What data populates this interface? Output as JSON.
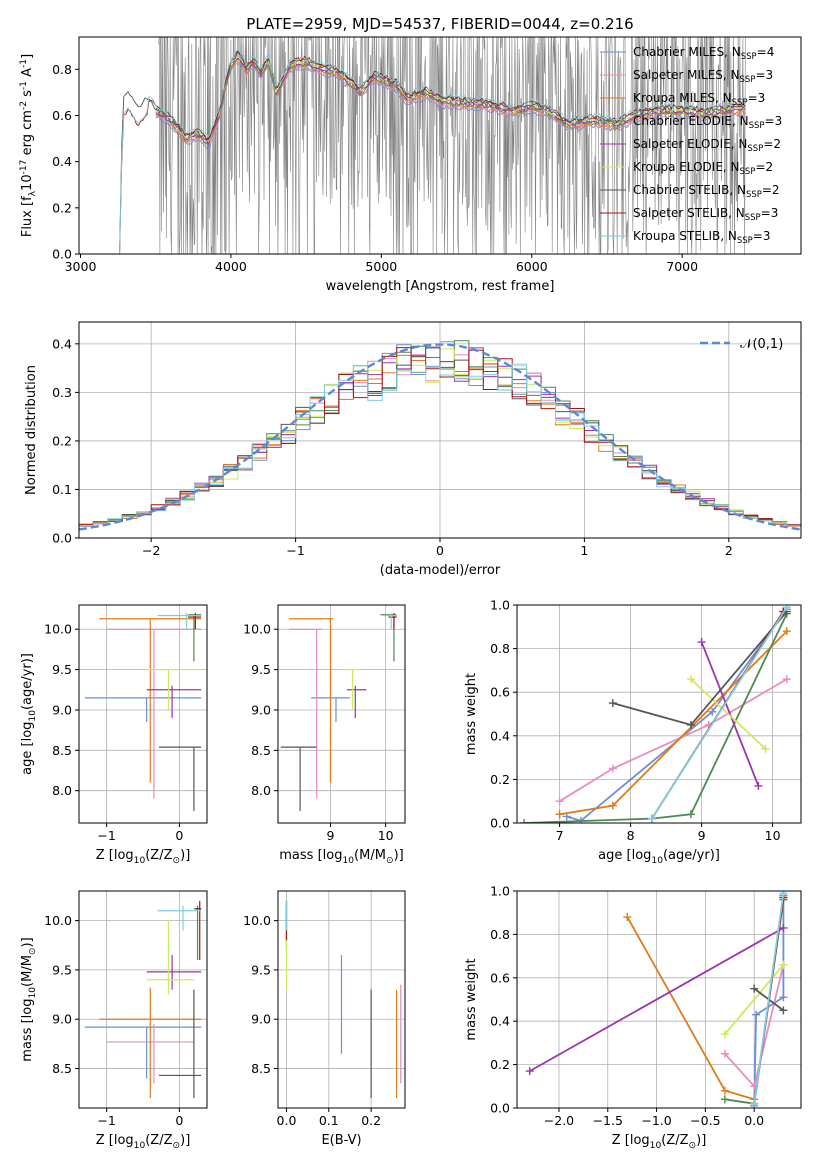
{
  "figure_title": "PLATE=2959, MJD=54537, FIBERID=0044, z=0.216",
  "colors": {
    "s0": "#6b8fd6",
    "s1": "#e68cc0",
    "s2": "#e07b1c",
    "s3": "#4f8a55",
    "s4": "#9b34b0",
    "s5": "#c9ec5a",
    "s6": "#555555",
    "s7": "#a01818",
    "s8": "#7fcfe0",
    "data": "#808080",
    "gaussian": "#5a8ad6",
    "grid": "#b0b0b0"
  },
  "series_names": [
    "Chabrier MILES, N$_{SSP}$=4",
    "Salpeter MILES, N$_{SSP}$=3",
    "Kroupa MILES, N$_{SSP}$=3",
    "Chabrier ELODIE, N$_{SSP}$=3",
    "Salpeter ELODIE, N$_{SSP}$=2",
    "Kroupa ELODIE, N$_{SSP}$=2",
    "Chabrier STELIB, N$_{SSP}$=2",
    "Salpeter STELIB, N$_{SSP}$=3",
    "Kroupa STELIB, N$_{SSP}$=3"
  ],
  "legend_display": [
    {
      "pre": "Chabrier MILES, N",
      "sub": "SSP",
      "post": "=4"
    },
    {
      "pre": "Salpeter MILES, N",
      "sub": "SSP",
      "post": "=3"
    },
    {
      "pre": "Kroupa MILES, N",
      "sub": "SSP",
      "post": "=3"
    },
    {
      "pre": "Chabrier ELODIE, N",
      "sub": "SSP",
      "post": "=3"
    },
    {
      "pre": "Salpeter ELODIE, N",
      "sub": "SSP",
      "post": "=2"
    },
    {
      "pre": "Kroupa ELODIE, N",
      "sub": "SSP",
      "post": "=2"
    },
    {
      "pre": "Chabrier STELIB, N",
      "sub": "SSP",
      "post": "=2"
    },
    {
      "pre": "Salpeter STELIB, N",
      "sub": "SSP",
      "post": "=3"
    },
    {
      "pre": "Kroupa STELIB, N",
      "sub": "SSP",
      "post": "=3"
    }
  ],
  "chart_data": [
    {
      "id": "spectrum",
      "type": "line",
      "title": "PLATE=2959, MJD=54537, FIBERID=0044, z=0.216",
      "xlabel": "wavelength [Angstrom, rest frame]",
      "ylabel": "Flux [f$_\\lambda$10$^{-17}$ erg cm$^{-2}$ s$^{-1}$ A$^{-1}$]",
      "xlim": [
        2990,
        7790
      ],
      "ylim": [
        0,
        0.94
      ],
      "xticks": [
        3000,
        4000,
        5000,
        6000,
        7000
      ],
      "yticks": [
        0.0,
        0.2,
        0.4,
        0.6,
        0.8
      ],
      "grid": false,
      "legend": "upper right",
      "data_range": [
        3520,
        7420
      ],
      "model_continuum": [
        [
          3260,
          0.0
        ],
        [
          3280,
          0.66
        ],
        [
          3320,
          0.69
        ],
        [
          3380,
          0.62
        ],
        [
          3440,
          0.67
        ],
        [
          3500,
          0.62
        ],
        [
          3600,
          0.58
        ],
        [
          3700,
          0.5
        ],
        [
          3780,
          0.52
        ],
        [
          3850,
          0.48
        ],
        [
          3920,
          0.6
        ],
        [
          3960,
          0.72
        ],
        [
          4000,
          0.82
        ],
        [
          4050,
          0.86
        ],
        [
          4100,
          0.8
        ],
        [
          4150,
          0.83
        ],
        [
          4200,
          0.78
        ],
        [
          4250,
          0.84
        ],
        [
          4300,
          0.7
        ],
        [
          4400,
          0.82
        ],
        [
          4500,
          0.83
        ],
        [
          4600,
          0.8
        ],
        [
          4700,
          0.79
        ],
        [
          4800,
          0.74
        ],
        [
          4861,
          0.7
        ],
        [
          4950,
          0.77
        ],
        [
          5100,
          0.73
        ],
        [
          5175,
          0.67
        ],
        [
          5300,
          0.7
        ],
        [
          5400,
          0.66
        ],
        [
          5500,
          0.66
        ],
        [
          5600,
          0.65
        ],
        [
          5700,
          0.65
        ],
        [
          5800,
          0.63
        ],
        [
          5890,
          0.62
        ],
        [
          6000,
          0.64
        ],
        [
          6100,
          0.62
        ],
        [
          6250,
          0.56
        ],
        [
          6400,
          0.58
        ],
        [
          6563,
          0.56
        ],
        [
          6700,
          0.6
        ],
        [
          6850,
          0.62
        ],
        [
          7000,
          0.62
        ],
        [
          7150,
          0.61
        ],
        [
          7300,
          0.62
        ],
        [
          7420,
          0.63
        ],
        [
          7421,
          0.0
        ]
      ]
    },
    {
      "id": "residual-histogram",
      "type": "histogram",
      "xlabel": "(data-model)/error",
      "ylabel": "Normed distribution",
      "xlim": [
        -2.5,
        2.5
      ],
      "ylim": [
        0,
        0.445
      ],
      "xticks": [
        -2,
        -1,
        0,
        1,
        2
      ],
      "yticks": [
        0.0,
        0.1,
        0.2,
        0.3,
        0.4
      ],
      "grid": true,
      "legend": "upper right",
      "reference_curve": {
        "name": "$\\mathcal{N}(0,1)$",
        "mean": 0,
        "sigma": 1
      },
      "bin_width": 0.1
    },
    {
      "id": "age-vs-metallicity",
      "type": "errorbar",
      "xlabel": "Z [log$_{10}$(Z/Z$_\\odot$)]",
      "ylabel": "age  [log$_{10}$(age/yr)]",
      "xlim": [
        -1.38,
        0.38
      ],
      "ylim": [
        7.6,
        10.3
      ],
      "xticks": [
        -1,
        0
      ],
      "yticks": [
        8.0,
        8.5,
        9.0,
        9.5,
        10.0
      ],
      "grid": true,
      "points": [
        {
          "series": 0,
          "x": -0.45,
          "xlo": -1.3,
          "xhi": 0.3,
          "y": 9.15,
          "ylo": 8.85,
          "yhi": 9.15
        },
        {
          "series": 1,
          "x": -0.35,
          "xlo": -1.0,
          "xhi": 0.3,
          "y": 10.0,
          "ylo": 7.9,
          "yhi": 10.0
        },
        {
          "series": 2,
          "x": -0.4,
          "xlo": -1.1,
          "xhi": 0.3,
          "y": 10.13,
          "ylo": 8.1,
          "yhi": 10.13
        },
        {
          "series": 3,
          "x": 0.2,
          "xlo": 0.12,
          "xhi": 0.3,
          "y": 10.18,
          "ylo": 9.6,
          "yhi": 10.18
        },
        {
          "series": 4,
          "x": -0.1,
          "xlo": -0.45,
          "xhi": 0.3,
          "y": 9.25,
          "ylo": 8.9,
          "yhi": 9.3
        },
        {
          "series": 5,
          "x": -0.15,
          "xlo": -0.45,
          "xhi": 0.3,
          "y": 9.5,
          "ylo": 9.0,
          "yhi": 9.5
        },
        {
          "series": 6,
          "x": 0.2,
          "xlo": -0.28,
          "xhi": 0.3,
          "y": 8.54,
          "ylo": 7.75,
          "yhi": 8.54
        },
        {
          "series": 7,
          "x": 0.22,
          "xlo": 0.12,
          "xhi": 0.3,
          "y": 10.15,
          "ylo": 10.0,
          "yhi": 10.2
        },
        {
          "series": 8,
          "x": 0.1,
          "xlo": -0.3,
          "xhi": 0.3,
          "y": 10.17,
          "ylo": 10.0,
          "yhi": 10.2
        }
      ]
    },
    {
      "id": "age-vs-mass",
      "type": "errorbar",
      "xlabel": "mass [log$_{10}$(M/M$_\\odot$)]",
      "ylabel": "",
      "xlim": [
        8.05,
        10.35
      ],
      "ylim": [
        7.6,
        10.3
      ],
      "xticks": [
        9,
        10
      ],
      "yticks": [
        8.0,
        8.5,
        9.0,
        9.5,
        10.0
      ],
      "grid": true,
      "points": [
        {
          "series": 0,
          "x": 9.1,
          "xlo": 8.65,
          "xhi": 9.35,
          "y": 9.15,
          "ylo": 8.85,
          "yhi": 9.15
        },
        {
          "series": 1,
          "x": 8.75,
          "xlo": 8.25,
          "xhi": 8.85,
          "y": 10.0,
          "ylo": 7.9,
          "yhi": 10.0
        },
        {
          "series": 2,
          "x": 9.0,
          "xlo": 8.25,
          "xhi": 9.05,
          "y": 10.13,
          "ylo": 8.1,
          "yhi": 10.13
        },
        {
          "series": 3,
          "x": 10.15,
          "xlo": 9.9,
          "xhi": 10.2,
          "y": 10.18,
          "ylo": 9.6,
          "yhi": 10.18
        },
        {
          "series": 4,
          "x": 9.45,
          "xlo": 9.3,
          "xhi": 9.65,
          "y": 9.25,
          "ylo": 8.9,
          "yhi": 9.3
        },
        {
          "series": 5,
          "x": 9.4,
          "xlo": 9.2,
          "xhi": 9.55,
          "y": 9.5,
          "ylo": 9.0,
          "yhi": 9.5
        },
        {
          "series": 6,
          "x": 8.45,
          "xlo": 8.1,
          "xhi": 8.75,
          "y": 8.54,
          "ylo": 7.75,
          "yhi": 8.54
        },
        {
          "series": 7,
          "x": 10.15,
          "xlo": 10.05,
          "xhi": 10.2,
          "y": 10.15,
          "ylo": 10.0,
          "yhi": 10.2
        },
        {
          "series": 8,
          "x": 10.1,
          "xlo": 9.95,
          "xhi": 10.2,
          "y": 10.17,
          "ylo": 10.0,
          "yhi": 10.2
        }
      ]
    },
    {
      "id": "mass-weight-vs-age",
      "type": "line",
      "xlabel": "age  [log$_{10}$(age/yr)]",
      "ylabel": "mass weight",
      "xlim": [
        6.4,
        10.4
      ],
      "ylim": [
        0,
        1
      ],
      "xticks": [
        7,
        8,
        9,
        10
      ],
      "yticks": [
        0.0,
        0.2,
        0.4,
        0.6,
        0.8,
        1.0
      ],
      "grid": true,
      "series": [
        {
          "series": 0,
          "x": [
            7.1,
            7.3,
            9.15,
            10.2
          ],
          "y": [
            0.03,
            0.01,
            0.51,
            0.98
          ]
        },
        {
          "series": 1,
          "x": [
            7.0,
            7.75,
            9.1,
            10.2
          ],
          "y": [
            0.1,
            0.25,
            0.45,
            0.66
          ]
        },
        {
          "series": 2,
          "x": [
            7.0,
            7.75,
            10.2
          ],
          "y": [
            0.04,
            0.08,
            0.88
          ]
        },
        {
          "series": 3,
          "x": [
            6.5,
            8.3,
            8.85,
            10.2
          ],
          "y": [
            0.0,
            0.02,
            0.04,
            0.96
          ]
        },
        {
          "series": 4,
          "x": [
            9.0,
            9.8
          ],
          "y": [
            0.83,
            0.17
          ]
        },
        {
          "series": 5,
          "x": [
            8.85,
            9.9
          ],
          "y": [
            0.66,
            0.34
          ]
        },
        {
          "series": 6,
          "x": [
            7.75,
            8.85,
            10.2
          ],
          "y": [
            0.55,
            0.45,
            0.97
          ]
        },
        {
          "series": 7,
          "x": [
            8.3,
            10.15
          ],
          "y": [
            0.02,
            0.97
          ]
        },
        {
          "series": 8,
          "x": [
            8.3,
            10.2
          ],
          "y": [
            0.02,
            0.99
          ]
        }
      ]
    },
    {
      "id": "mass-vs-metallicity",
      "type": "errorbar",
      "xlabel": "Z [log$_{10}$(Z/Z$_\\odot$)]",
      "ylabel": "mass [log$_{10}$(M/M$_\\odot$)]",
      "xlim": [
        -1.38,
        0.38
      ],
      "ylim": [
        8.1,
        10.3
      ],
      "xticks": [
        -1,
        0
      ],
      "yticks": [
        8.5,
        9.0,
        9.5,
        10.0
      ],
      "grid": true,
      "points": [
        {
          "series": 0,
          "x": -0.45,
          "xlo": -1.3,
          "xhi": 0.3,
          "y": 8.92,
          "ylo": 8.4,
          "yhi": 8.92
        },
        {
          "series": 1,
          "x": -0.35,
          "xlo": -1.0,
          "xhi": 0.2,
          "y": 8.77,
          "ylo": 8.35,
          "yhi": 8.95
        },
        {
          "series": 2,
          "x": -0.4,
          "xlo": -1.1,
          "xhi": 0.3,
          "y": 9.0,
          "ylo": 8.2,
          "yhi": 9.32
        },
        {
          "series": 3,
          "x": 0.25,
          "xlo": 0.2,
          "xhi": 0.3,
          "y": 10.12,
          "ylo": 9.6,
          "yhi": 10.15
        },
        {
          "series": 4,
          "x": -0.1,
          "xlo": -0.45,
          "xhi": 0.3,
          "y": 9.48,
          "ylo": 9.3,
          "yhi": 9.65
        },
        {
          "series": 5,
          "x": -0.15,
          "xlo": -0.45,
          "xhi": 0.2,
          "y": 9.4,
          "ylo": 9.25,
          "yhi": 10.0
        },
        {
          "series": 6,
          "x": 0.2,
          "xlo": -0.28,
          "xhi": 0.3,
          "y": 8.43,
          "ylo": 8.2,
          "yhi": 9.3
        },
        {
          "series": 7,
          "x": 0.28,
          "xlo": 0.22,
          "xhi": 0.3,
          "y": 10.12,
          "ylo": 9.6,
          "yhi": 10.2
        },
        {
          "series": 8,
          "x": 0.05,
          "xlo": -0.3,
          "xhi": 0.3,
          "y": 10.1,
          "ylo": 9.9,
          "yhi": 10.15
        }
      ]
    },
    {
      "id": "mass-vs-extinction",
      "type": "errorbar",
      "xlabel": "E(B-V)",
      "ylabel": "",
      "xlim": [
        -0.02,
        0.28
      ],
      "ylim": [
        8.1,
        10.3
      ],
      "xticks": [
        0.0,
        0.1,
        0.2
      ],
      "yticks": [
        8.5,
        9.0,
        9.5,
        10.0
      ],
      "grid": true,
      "points": [
        {
          "series": 0,
          "x": 0.13,
          "ylo": 8.65,
          "yhi": 9.65
        },
        {
          "series": 1,
          "x": 0.27,
          "ylo": 8.35,
          "yhi": 9.35
        },
        {
          "series": 2,
          "x": 0.26,
          "ylo": 8.2,
          "yhi": 9.3
        },
        {
          "series": 3,
          "x": 0.0,
          "ylo": 9.7,
          "yhi": 10.2
        },
        {
          "series": 4,
          "x": 0.0,
          "ylo": 9.9,
          "yhi": 10.2
        },
        {
          "series": 5,
          "x": 0.0,
          "ylo": 9.3,
          "yhi": 10.0
        },
        {
          "series": 6,
          "x": 0.2,
          "ylo": 8.2,
          "yhi": 9.3
        },
        {
          "series": 7,
          "x": 0.0,
          "ylo": 9.8,
          "yhi": 10.2
        },
        {
          "series": 8,
          "x": 0.0,
          "ylo": 9.9,
          "yhi": 10.2
        }
      ]
    },
    {
      "id": "mass-weight-vs-metallicity",
      "type": "line",
      "xlabel": "Z [log$_{10}$(Z/Z$_\\odot$)]",
      "ylabel": "mass weight",
      "xlim": [
        -2.43,
        0.48
      ],
      "ylim": [
        0,
        1
      ],
      "xticks": [
        -2.0,
        -1.5,
        -1.0,
        -0.5,
        0.0
      ],
      "yticks": [
        0.0,
        0.2,
        0.4,
        0.6,
        0.8,
        1.0
      ],
      "grid": true,
      "series": [
        {
          "series": 0,
          "x": [
            0.0,
            0.02,
            0.3,
            0.3
          ],
          "y": [
            0.01,
            0.43,
            0.51,
            0.98
          ]
        },
        {
          "series": 1,
          "x": [
            -0.3,
            0.0,
            0.3
          ],
          "y": [
            0.25,
            0.1,
            0.66
          ]
        },
        {
          "series": 2,
          "x": [
            -1.3,
            -0.3,
            0.0
          ],
          "y": [
            0.88,
            0.08,
            0.04
          ]
        },
        {
          "series": 3,
          "x": [
            -0.3,
            0.0,
            0.3
          ],
          "y": [
            0.04,
            0.02,
            0.96
          ]
        },
        {
          "series": 4,
          "x": [
            -2.3,
            0.3
          ],
          "y": [
            0.17,
            0.83
          ]
        },
        {
          "series": 5,
          "x": [
            -0.3,
            0.3
          ],
          "y": [
            0.34,
            0.66
          ]
        },
        {
          "series": 6,
          "x": [
            0.0,
            0.3
          ],
          "y": [
            0.55,
            0.45
          ]
        },
        {
          "series": 7,
          "x": [
            0.0,
            0.3
          ],
          "y": [
            0.02,
            0.97
          ]
        },
        {
          "series": 8,
          "x": [
            0.0,
            0.3
          ],
          "y": [
            0.02,
            0.99
          ]
        }
      ]
    }
  ]
}
